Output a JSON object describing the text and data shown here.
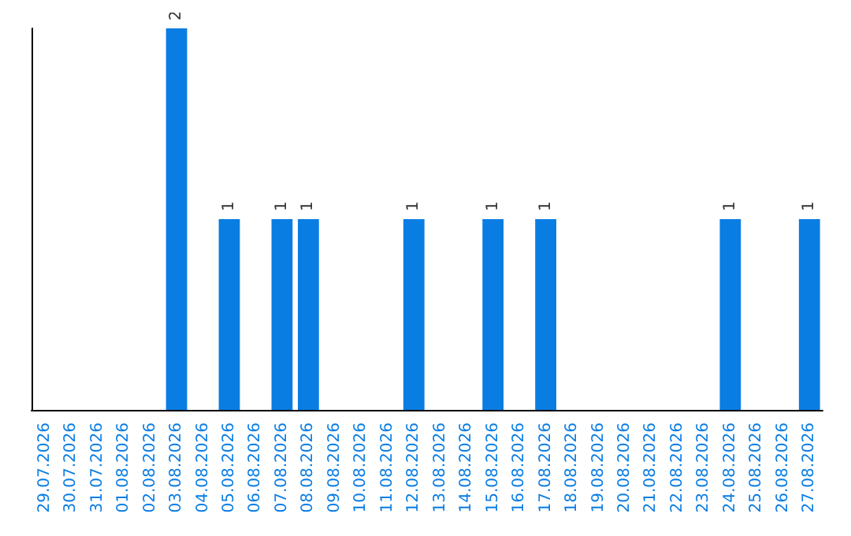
{
  "chart_data": {
    "type": "bar",
    "categories": [
      "29.07.2026",
      "30.07.2026",
      "31.07.2026",
      "01.08.2026",
      "02.08.2026",
      "03.08.2026",
      "04.08.2026",
      "05.08.2026",
      "06.08.2026",
      "07.08.2026",
      "08.08.2026",
      "09.08.2026",
      "10.08.2026",
      "11.08.2026",
      "12.08.2026",
      "13.08.2026",
      "14.08.2026",
      "15.08.2026",
      "16.08.2026",
      "17.08.2026",
      "18.08.2026",
      "19.08.2026",
      "20.08.2026",
      "21.08.2026",
      "22.08.2026",
      "23.08.2026",
      "24.08.2026",
      "25.08.2026",
      "26.08.2026",
      "27.08.2026"
    ],
    "values": [
      0,
      0,
      0,
      0,
      0,
      2,
      0,
      1,
      0,
      1,
      1,
      0,
      0,
      0,
      1,
      0,
      0,
      1,
      0,
      1,
      0,
      0,
      0,
      0,
      0,
      0,
      1,
      0,
      0,
      1
    ],
    "value_labels": [
      null,
      null,
      null,
      null,
      null,
      "2",
      null,
      "1",
      null,
      "1",
      "1",
      null,
      null,
      null,
      "1",
      null,
      null,
      "1",
      null,
      "1",
      null,
      null,
      null,
      null,
      null,
      null,
      "1",
      null,
      null,
      "1"
    ],
    "color": "#0a7de3",
    "tick_labels": "x",
    "grid": false
  }
}
